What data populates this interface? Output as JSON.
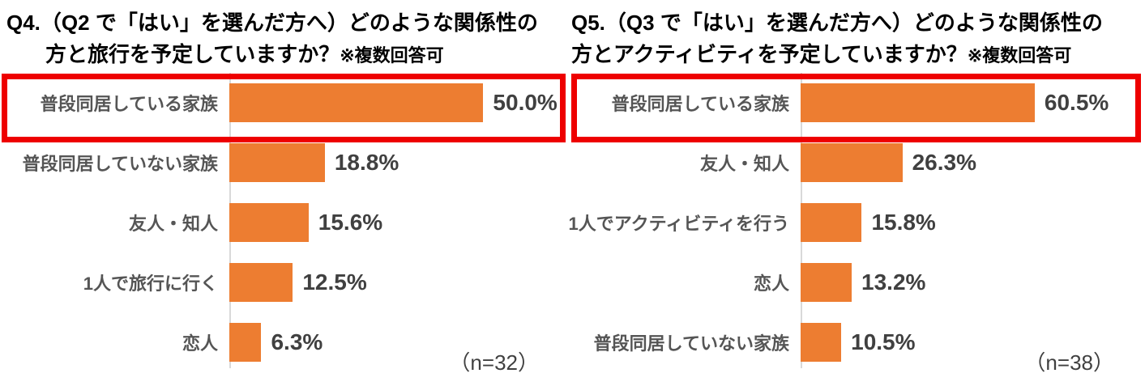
{
  "colors": {
    "bar": "#ed7d31",
    "highlight_border": "#ee0000",
    "category_text": "#555555",
    "value_text": "#404040",
    "title_text": "#000000",
    "axis_line": "#d9d9d9",
    "background": "#ffffff"
  },
  "chart_data": [
    {
      "type": "bar",
      "orientation": "horizontal",
      "title_line1": "Q4.（Q2 で「はい」を選んだ方へ）どのような関係性の",
      "title_line2": "方と旅行を予定していますか？",
      "title_note": "※複数回答可",
      "categories": [
        "普段同居している家族",
        "普段同居していない家族",
        "友人・知人",
        "1人で旅行に行く",
        "恋人"
      ],
      "values": [
        50.0,
        18.8,
        15.6,
        12.5,
        6.3
      ],
      "value_labels": [
        "50.0%",
        "18.8%",
        "15.6%",
        "12.5%",
        "6.3%"
      ],
      "sample_label": "（n=32）",
      "highlighted_index": 0,
      "xlim": [
        0,
        67
      ],
      "grid": false,
      "legend": "none"
    },
    {
      "type": "bar",
      "orientation": "horizontal",
      "title_line1": "Q5.（Q3 で「はい」を選んだ方へ）どのような関係性の",
      "title_line2": "方とアクティビティを予定していますか？",
      "title_note": "※複数回答可",
      "categories": [
        "普段同居している家族",
        "友人・知人",
        "1人でアクティビティを行う",
        "恋人",
        "普段同居していない家族"
      ],
      "values": [
        60.5,
        26.3,
        15.8,
        13.2,
        10.5
      ],
      "value_labels": [
        "60.5%",
        "26.3%",
        "15.8%",
        "13.2%",
        "10.5%"
      ],
      "sample_label": "（n=38）",
      "highlighted_index": 0,
      "xlim": [
        0,
        89
      ],
      "grid": false,
      "legend": "none"
    }
  ]
}
